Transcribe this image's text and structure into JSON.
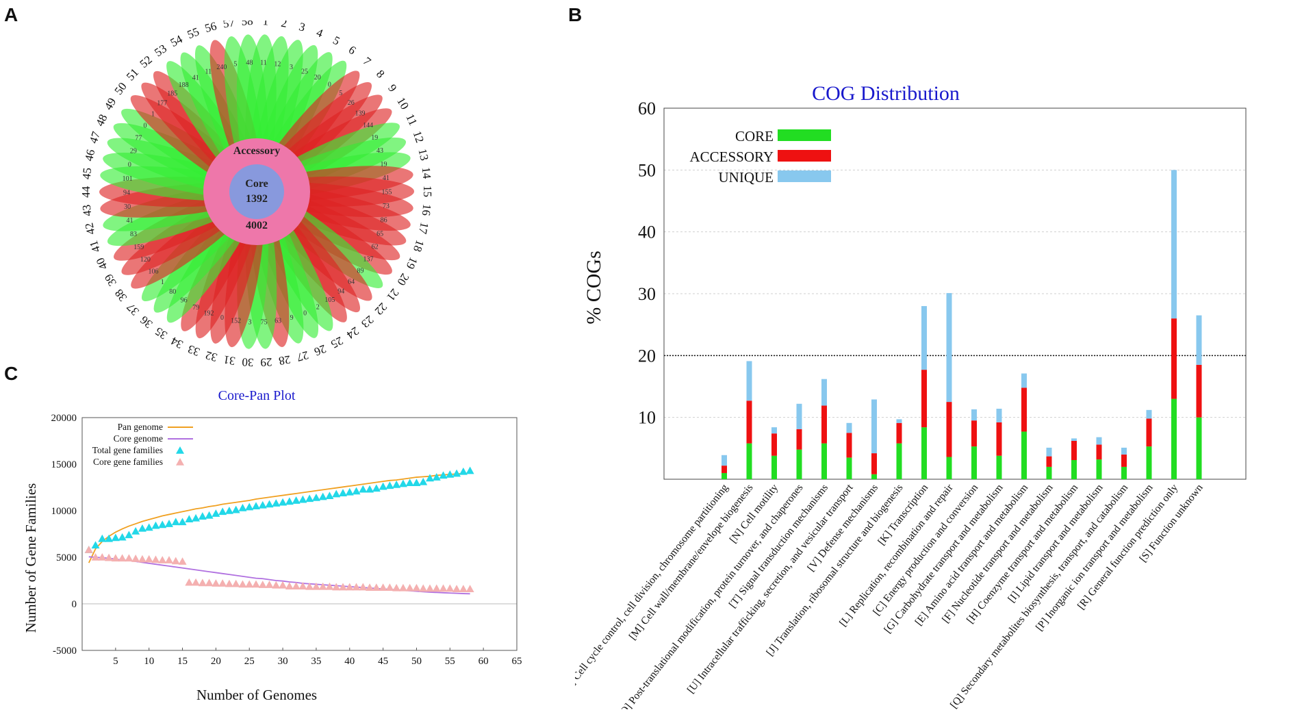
{
  "panels": {
    "a": "A",
    "b": "B",
    "c": "C"
  },
  "colors": {
    "core": "#22dd22",
    "accessory": "#ee1111",
    "unique": "#88c8ee",
    "pan_line": "#f0a020",
    "core_line": "#b070e0",
    "total_marker": "#22d8e8",
    "core_marker": "#f4b0b0",
    "title_blue": "#1818cc",
    "petal_green": "#33ee33",
    "petal_red": "#dd2222",
    "ring_pink": "#ee77aa",
    "core_circle": "#8899dd"
  },
  "flower": {
    "accessory_label": "Accessory",
    "core_label": "Core",
    "core_value": "1392",
    "accessory_value": "4002",
    "genome_labels": [
      "1",
      "2",
      "3",
      "4",
      "5",
      "6",
      "7",
      "8",
      "9",
      "10",
      "11",
      "12",
      "13",
      "14",
      "15",
      "16",
      "17",
      "18",
      "19",
      "20",
      "21",
      "22",
      "23",
      "24",
      "25",
      "26",
      "27",
      "28",
      "29",
      "30",
      "31",
      "32",
      "33",
      "34",
      "35",
      "36",
      "37",
      "38",
      "39",
      "40",
      "41",
      "42",
      "43",
      "44",
      "45",
      "46",
      "47",
      "48",
      "49",
      "50",
      "51",
      "52",
      "53",
      "54",
      "55",
      "56",
      "57",
      "58"
    ],
    "petal_values": [
      "11",
      "12",
      "3",
      "25",
      "20",
      "0",
      "5",
      "26",
      "139",
      "144",
      "19",
      "43",
      "19",
      "41",
      "155",
      "73",
      "86",
      "65",
      "62",
      "137",
      "89",
      "64",
      "94",
      "105",
      "2",
      "0",
      "9",
      "63",
      "75",
      "3",
      "152",
      "0",
      "192",
      "79",
      "96",
      "80",
      "1",
      "106",
      "120",
      "159",
      "83",
      "41",
      "30",
      "94",
      "101",
      "0",
      "29",
      "77",
      "0",
      "1",
      "177",
      "185",
      "188",
      "41",
      "11",
      "240",
      "5",
      "48"
    ],
    "petal_colors": [
      "g",
      "g",
      "g",
      "g",
      "g",
      "g",
      "r",
      "r",
      "r",
      "r",
      "g",
      "g",
      "g",
      "r",
      "r",
      "r",
      "r",
      "r",
      "r",
      "r",
      "g",
      "r",
      "r",
      "r",
      "g",
      "g",
      "g",
      "r",
      "g",
      "g",
      "r",
      "r",
      "r",
      "r",
      "g",
      "g",
      "g",
      "r",
      "r",
      "r",
      "g",
      "g",
      "r",
      "r",
      "g",
      "g",
      "g",
      "g",
      "g",
      "r",
      "r",
      "r",
      "g",
      "g",
      "g",
      "r",
      "g",
      "g"
    ]
  },
  "cog_chart": {
    "chart_data": {
      "type": "bar",
      "title": "COG Distribution",
      "ylabel": "% COGs",
      "ylim": [
        0,
        60
      ],
      "yticks": [
        "10",
        "20",
        "30",
        "40",
        "50",
        "60"
      ],
      "threshold_line": 20,
      "legend": [
        "CORE",
        "ACCESSORY",
        "UNIQUE"
      ],
      "legend_position": "top-left",
      "categories": [
        "[D] Cell cycle control, cell division, chromosome partitioning",
        "[M] Cell wall/membrane/envelope biogenesis",
        "[N] Cell motility",
        "[O] Post-translational modification, protein turnover, and chaperones",
        "[T] Signal transduction mechanisms",
        "[U] Intracellular trafficking, secretion, and vesicular transport",
        "[V] Defense mechanisms",
        "[J] Translation, ribosomal structure and biogenesis",
        "[K] Transcription",
        "[L] Replication, recombination and repair",
        "[C] Energy production and conversion",
        "[G] Carbohydrate transport and metabolism",
        "[E] Amino acid transport and metabolism",
        "[F] Nucleotide transport and metabolism",
        "[H] Coenzyme transport and metabolism",
        "[I] Lipid transport and metabolism",
        "[Q] Secondary metabolites biosynthesis, transport, and catabolism",
        "[P] Inorganic ion transport and metabolism",
        "[R] General function prediction only",
        "[S] Function unknown"
      ],
      "series": [
        {
          "name": "CORE",
          "values": [
            1.0,
            5.8,
            3.8,
            4.8,
            5.8,
            3.5,
            0.8,
            5.8,
            8.4,
            3.6,
            5.3,
            3.8,
            7.7,
            2.0,
            3.1,
            3.2,
            2.0,
            5.3,
            13.0,
            10.0
          ]
        },
        {
          "name": "ACCESSORY",
          "values": [
            1.2,
            6.9,
            3.6,
            3.3,
            6.1,
            4.0,
            3.4,
            3.3,
            9.3,
            8.9,
            4.2,
            5.4,
            7.1,
            1.7,
            3.1,
            2.4,
            2.0,
            4.5,
            13.0,
            8.5
          ]
        },
        {
          "name": "UNIQUE",
          "values": [
            1.7,
            6.4,
            1.0,
            4.1,
            4.3,
            1.6,
            8.7,
            0.6,
            10.3,
            17.6,
            1.8,
            2.2,
            2.3,
            1.4,
            0.4,
            1.2,
            1.1,
            1.4,
            24.0,
            8.0
          ]
        }
      ]
    }
  },
  "core_pan": {
    "chart_data": {
      "type": "scatter",
      "title": "Core-Pan Plot",
      "xlabel": "Number of  Genomes",
      "ylabel": "Number of Gene Families",
      "xlim": [
        0,
        65
      ],
      "ylim": [
        -5000,
        20000
      ],
      "xticks": [
        "5",
        "10",
        "15",
        "20",
        "25",
        "30",
        "35",
        "40",
        "45",
        "50",
        "55",
        "60",
        "65"
      ],
      "yticks": [
        "-5000",
        "0",
        "5000",
        "10000",
        "15000",
        "20000"
      ],
      "legend": [
        "Pan genome",
        "Core genome",
        "Total gene families",
        "Core gene families"
      ],
      "x": [
        1,
        2,
        3,
        4,
        5,
        6,
        7,
        8,
        9,
        10,
        11,
        12,
        13,
        14,
        15,
        16,
        17,
        18,
        19,
        20,
        21,
        22,
        23,
        24,
        25,
        26,
        27,
        28,
        29,
        30,
        31,
        32,
        33,
        34,
        35,
        36,
        37,
        38,
        39,
        40,
        41,
        42,
        43,
        44,
        45,
        46,
        47,
        48,
        49,
        50,
        51,
        52,
        53,
        54,
        55,
        56,
        57,
        58
      ],
      "total_gene_families": [
        5800,
        6300,
        7000,
        7000,
        7100,
        7150,
        7400,
        7800,
        8100,
        8200,
        8400,
        8500,
        8600,
        8800,
        8800,
        9100,
        9200,
        9400,
        9500,
        9700,
        9900,
        10000,
        10100,
        10300,
        10400,
        10500,
        10600,
        10700,
        10800,
        10900,
        11000,
        11100,
        11200,
        11300,
        11400,
        11500,
        11600,
        11800,
        11900,
        12000,
        12100,
        12300,
        12300,
        12400,
        12600,
        12700,
        12800,
        12900,
        13000,
        13000,
        13100,
        13500,
        13600,
        13800,
        13900,
        14000,
        14200,
        14300
      ],
      "core_gene_families": [
        5800,
        5000,
        5000,
        4950,
        4900,
        4900,
        4900,
        4850,
        4800,
        4800,
        4750,
        4700,
        4700,
        4600,
        4550,
        2300,
        2300,
        2250,
        2250,
        2200,
        2200,
        2150,
        2150,
        2100,
        2100,
        2100,
        2050,
        2050,
        2000,
        2000,
        1900,
        1900,
        1900,
        1850,
        1850,
        1850,
        1850,
        1800,
        1800,
        1800,
        1800,
        1800,
        1750,
        1750,
        1750,
        1750,
        1700,
        1700,
        1700,
        1700,
        1650,
        1650,
        1650,
        1650,
        1650,
        1600,
        1600,
        1600
      ],
      "pan_genome_fit": [
        4400,
        5900,
        6700,
        7250,
        7700,
        8050,
        8350,
        8600,
        8850,
        9050,
        9250,
        9450,
        9600,
        9750,
        9900,
        10050,
        10200,
        10300,
        10450,
        10550,
        10700,
        10800,
        10900,
        11000,
        11100,
        11250,
        11350,
        11450,
        11550,
        11650,
        11750,
        11850,
        11950,
        12050,
        12150,
        12250,
        12350,
        12450,
        12550,
        12650,
        12750,
        12850,
        12950,
        13050,
        13150,
        13250,
        13300,
        13400,
        13500,
        13600,
        13650,
        13700,
        13800,
        13850,
        13900,
        13950,
        14000,
        14050
      ],
      "core_genome_fit": [
        5050,
        5000,
        4950,
        4900,
        4800,
        4700,
        4650,
        4550,
        4450,
        4350,
        4250,
        4150,
        4050,
        3950,
        3850,
        3750,
        3650,
        3550,
        3450,
        3350,
        3250,
        3150,
        3050,
        2950,
        2850,
        2750,
        2700,
        2600,
        2500,
        2450,
        2350,
        2300,
        2200,
        2150,
        2100,
        2050,
        2000,
        1950,
        1900,
        1850,
        1800,
        1750,
        1700,
        1650,
        1600,
        1550,
        1500,
        1450,
        1400,
        1350,
        1300,
        1250,
        1220,
        1190,
        1160,
        1130,
        1100,
        1080
      ]
    }
  }
}
